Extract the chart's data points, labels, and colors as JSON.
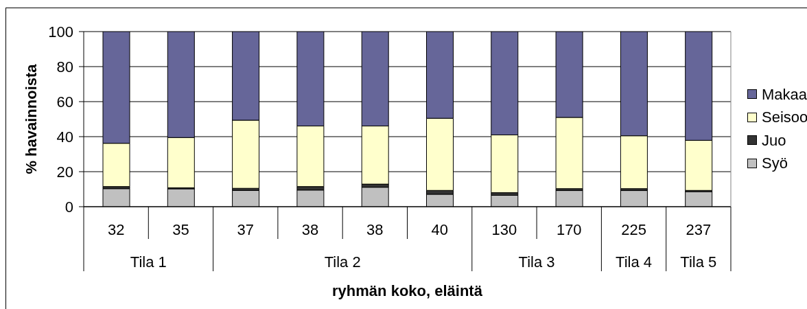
{
  "chart_data": {
    "type": "bar",
    "stacked": true,
    "xlabel": "ryhmän koko, eläintä",
    "ylabel": "% havainnoista",
    "categories": [
      "32",
      "35",
      "37",
      "38",
      "38",
      "40",
      "130",
      "170",
      "225",
      "237"
    ],
    "series": [
      {
        "name": "Syö",
        "color": "#c0c0c0",
        "values": [
          10.3,
          10.2,
          9.3,
          9.5,
          11.1,
          7.1,
          6.5,
          9.2,
          9.2,
          8.6
        ]
      },
      {
        "name": "Juo",
        "color": "#333333",
        "values": [
          1.2,
          0.6,
          1.2,
          2.0,
          1.8,
          2.2,
          1.5,
          1.1,
          1.1,
          0.7
        ]
      },
      {
        "name": "Seisoo",
        "color": "#ffffcc",
        "values": [
          24.7,
          28.7,
          38.9,
          34.6,
          33.2,
          41.2,
          33.0,
          40.7,
          30.2,
          28.6
        ]
      },
      {
        "name": "Makaa",
        "color": "#666699",
        "values": [
          63.8,
          60.5,
          50.6,
          53.9,
          53.9,
          49.5,
          59.0,
          49.0,
          59.5,
          62.1
        ]
      }
    ],
    "ylim": [
      0,
      100
    ],
    "yticks": [
      0,
      20,
      40,
      60,
      80,
      100
    ],
    "grid": "y",
    "legend": "right",
    "annotations": [
      "Tila 1",
      "Tila 2",
      "Tila 3",
      "Tila 4",
      "Tila 5"
    ]
  }
}
